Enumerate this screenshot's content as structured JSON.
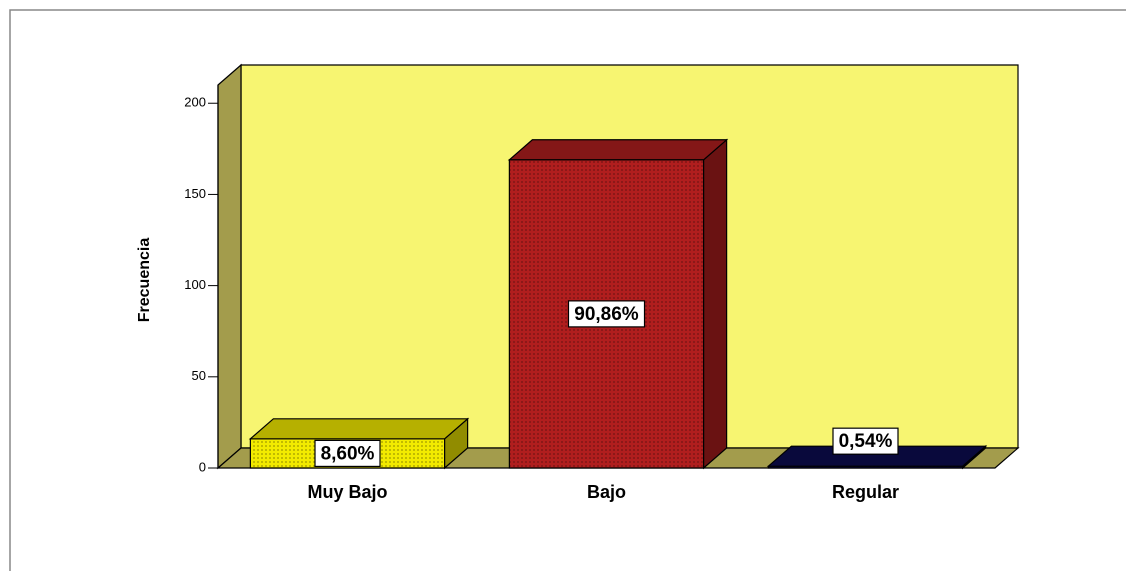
{
  "chart_data": {
    "type": "bar3d",
    "y_label": "Frecuencia",
    "categories": [
      "Muy Bajo",
      "Bajo",
      "Regular"
    ],
    "values": [
      16,
      169,
      1
    ],
    "colors": [
      "#f2ea00",
      "#b01e1e",
      "#0c0c50"
    ],
    "percentages": [
      8.6,
      90.86,
      0.54
    ],
    "percentage_labels": [
      "8,60%",
      "90,86%",
      "0,54%"
    ],
    "ylim": [
      0,
      210
    ],
    "yticks": [
      0,
      50,
      100,
      150,
      200
    ]
  }
}
